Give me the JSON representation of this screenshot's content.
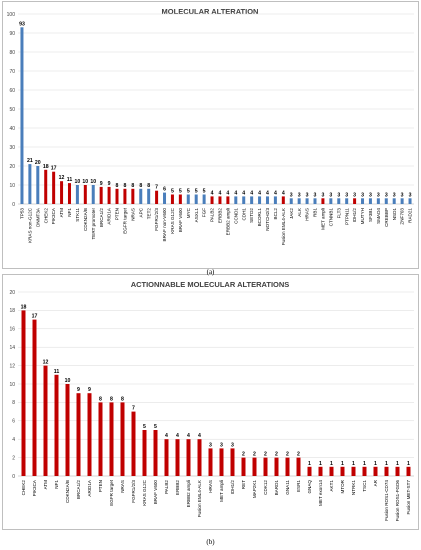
{
  "chart_data": [
    {
      "type": "bar",
      "title": "MOLECULAR ALTERATION",
      "caption": "(a)",
      "ylim": [
        0,
        100
      ],
      "yticks": [
        0,
        10,
        20,
        30,
        40,
        50,
        60,
        70,
        80,
        90,
        100
      ],
      "grid": true,
      "legend": "none",
      "colors": {
        "blue": "#4a7ebb",
        "red": "#c00000"
      },
      "categories": [
        "TP53",
        "KRAS non-G12C",
        "DNMT3A",
        "CHEK2",
        "PIK3CA",
        "ATM",
        "NF1",
        "STK11",
        "CDKN2A/B",
        "TERT promoter",
        "BRCA1/2",
        "ARID1A",
        "PTEN",
        "EGFR target",
        "NRAS",
        "APC",
        "TET2",
        "FGFR1/2/3",
        "BRAF non-V600",
        "KRAS G12C",
        "BRAF V600",
        "MYC",
        "ASXL1",
        "FGF",
        "PALB2",
        "ERBB2",
        "ERBB2 ampli",
        "CCND1",
        "CDH1",
        "SETD2",
        "BCORL1",
        "NOTCH2/3",
        "BCL2",
        "Fusion EML4-ALK",
        "JAK2",
        "ALK",
        "HRAS",
        "RB1",
        "MET ampli",
        "CTNNB1",
        "FLT3",
        "PTPN11",
        "IDH1/2",
        "MUTYH",
        "SF3B1",
        "SMAD4",
        "CREBBP",
        "NSD1",
        "ZNF703",
        "RAD21"
      ],
      "values": [
        93,
        21,
        20,
        18,
        17,
        12,
        11,
        10,
        10,
        10,
        9,
        9,
        8,
        8,
        8,
        8,
        8,
        7,
        6,
        5,
        5,
        5,
        5,
        5,
        4,
        4,
        4,
        4,
        4,
        4,
        4,
        4,
        4,
        4,
        3,
        3,
        3,
        3,
        3,
        3,
        3,
        3,
        3,
        3,
        3,
        3,
        3,
        3,
        3,
        3
      ],
      "bar_colors": [
        "blue",
        "blue",
        "blue",
        "red",
        "red",
        "red",
        "red",
        "blue",
        "red",
        "blue",
        "red",
        "red",
        "red",
        "red",
        "red",
        "blue",
        "blue",
        "red",
        "blue",
        "red",
        "red",
        "blue",
        "blue",
        "blue",
        "red",
        "red",
        "red",
        "blue",
        "blue",
        "blue",
        "blue",
        "blue",
        "blue",
        "red",
        "blue",
        "blue",
        "blue",
        "blue",
        "red",
        "blue",
        "blue",
        "blue",
        "red",
        "blue",
        "blue",
        "blue",
        "blue",
        "blue",
        "blue",
        "blue"
      ]
    },
    {
      "type": "bar",
      "title": "ACTIONNABLE MOLECULAR ALTERATIONS",
      "caption": "(b)",
      "ylim": [
        0,
        20
      ],
      "yticks": [
        0,
        2,
        4,
        6,
        8,
        10,
        12,
        14,
        16,
        18,
        20
      ],
      "grid": true,
      "legend": "none",
      "colors": {
        "red": "#c00000"
      },
      "categories": [
        "CHEK2",
        "PIK3CA",
        "ATM",
        "NF1",
        "CDKN2A/B",
        "BRCA1/2",
        "ARID1A",
        "PTEN",
        "EGFR target",
        "NRAS",
        "FGFR1/2/3",
        "KRAS G12C",
        "BRAF V600",
        "PALB2",
        "ERBB2",
        "ERBB2 ampli",
        "Fusion EML4-ALK",
        "HRAS",
        "MET ampli",
        "IDH1/2",
        "RET",
        "MAP2K1",
        "CDK12",
        "BARD1",
        "GNA11",
        "ESR1",
        "GNAQ",
        "MET exon14",
        "AKT1",
        "MTOR",
        "NTRK1",
        "TSC1",
        "AR",
        "Fusion ROS1-CD74",
        "Fusion ROS1-FGD6",
        "Fusion MET-ST7"
      ],
      "values": [
        18,
        17,
        12,
        11,
        10,
        9,
        9,
        8,
        8,
        8,
        7,
        5,
        5,
        4,
        4,
        4,
        4,
        3,
        3,
        3,
        2,
        2,
        2,
        2,
        2,
        2,
        1,
        1,
        1,
        1,
        1,
        1,
        1,
        1,
        1,
        1
      ]
    }
  ]
}
